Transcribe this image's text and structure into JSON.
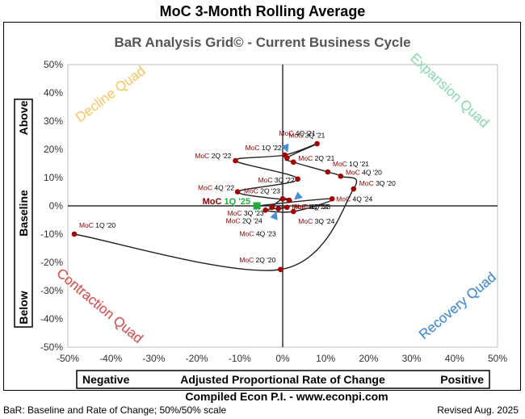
{
  "header": {
    "title": "MoC 3-Month Rolling Average"
  },
  "footer": {
    "left": "BaR: Baseline and Rate of Change; 50%/50% scale",
    "center": "Compiled Econ P.I. - www.econpi.com",
    "right": "Revised Aug. 2025"
  },
  "chart_data": {
    "type": "scatter",
    "title": "BaR Analysis Grid© - Current Business Cycle",
    "xlabel": "Adjusted Proportional Rate of Change",
    "xlabel_left": "Negative",
    "xlabel_right": "Positive",
    "ylabel_top": "Above",
    "ylabel_mid": "Baseline",
    "ylabel_bottom": "Below",
    "xlim": [
      -50,
      50
    ],
    "ylim": [
      -50,
      50
    ],
    "xticks": [
      "-50%",
      "-40%",
      "-30%",
      "-20%",
      "-10%",
      "0%",
      "10%",
      "20%",
      "30%",
      "40%",
      "50%"
    ],
    "yticks": [
      "50%",
      "40%",
      "30%",
      "20%",
      "10%",
      "0%",
      "-10%",
      "-20%",
      "-30%",
      "-40%",
      "-50%"
    ],
    "quadrants": {
      "top_left": "Decline Quad",
      "top_right": "Expansion Quad",
      "bottom_left": "Contraction Quad",
      "bottom_right": "Recovery Quad"
    },
    "colors": {
      "line": "#222222",
      "marker": "#a00000",
      "label": "#8b0000",
      "current": "#22aa44",
      "arrow": "#4a8fd0",
      "decline": "#f2c86a",
      "expansion": "#8fd6b0",
      "contraction": "#c9504f",
      "recovery": "#3f86c6"
    },
    "series": [
      {
        "name": "MoC 1Q '20",
        "x": -48.5,
        "y": -10.0
      },
      {
        "name": "MoC 2Q '20",
        "x": -0.5,
        "y": -22.5
      },
      {
        "name": "MoC 3Q '20",
        "x": 16.5,
        "y": 6.0
      },
      {
        "name": "MoC 4Q '20",
        "x": 13.5,
        "y": 10.5
      },
      {
        "name": "MoC 1Q '21",
        "x": 10.5,
        "y": 12.0
      },
      {
        "name": "MoC 2Q '21",
        "x": 2.5,
        "y": 15.5
      },
      {
        "name": "MoC 3Q '21",
        "x": 1.0,
        "y": 17.0
      },
      {
        "name": "MoC 4Q '21",
        "x": 8.0,
        "y": 22.0
      },
      {
        "name": "MoC 1Q '22",
        "x": 0.5,
        "y": 18.0
      },
      {
        "name": "MoC 2Q '22",
        "x": -11.0,
        "y": 16.0
      },
      {
        "name": "MoC 3Q '22",
        "x": 3.5,
        "y": 9.5
      },
      {
        "name": "MoC 4Q '22",
        "x": -10.5,
        "y": 5.0
      },
      {
        "name": "MoC 1Q '23",
        "x": 1.5,
        "y": 2.0
      },
      {
        "name": "MoC 2Q '23",
        "x": 0.0,
        "y": 2.5
      },
      {
        "name": "MoC 3Q '23",
        "x": -2.5,
        "y": -0.5
      },
      {
        "name": "MoC 4Q '23",
        "x": -1.0,
        "y": -1.0
      },
      {
        "name": "MoC 1Q '24",
        "x": 1.0,
        "y": -0.5
      },
      {
        "name": "MoC 2Q '24",
        "x": -4.0,
        "y": -1.5
      },
      {
        "name": "MoC 3Q '24",
        "x": 2.5,
        "y": -2.0
      },
      {
        "name": "MoC 4Q '24",
        "x": 11.5,
        "y": 2.5
      },
      {
        "name": "MoC 1Q '25",
        "x": -6.0,
        "y": 0.0,
        "current": true
      }
    ]
  }
}
